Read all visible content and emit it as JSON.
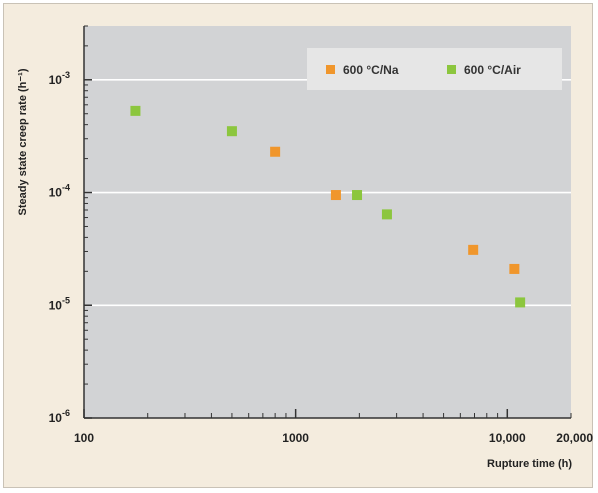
{
  "colors": {
    "frame_bg": "#f4ecde",
    "plot_bg": "#d2d3d5",
    "gridline": "#ffffff",
    "legend_bg": "#e6e6e6",
    "axis": "#333333"
  },
  "chart_data": {
    "type": "scatter",
    "title": "",
    "xlabel": "Rupture time (h)",
    "ylabel": "Steady state creep rate (h⁻¹)",
    "xscale": "log",
    "yscale": "log",
    "xlim": [
      100,
      20000
    ],
    "ylim": [
      1e-06,
      0.003
    ],
    "grid": "horizontal at decades",
    "legend_position": "top-right",
    "x_tick_labels": [
      {
        "value": 100,
        "label": "100"
      },
      {
        "value": 1000,
        "label": "1000"
      },
      {
        "value": 10000,
        "label": "10,000"
      },
      {
        "value": 20000,
        "label": "20,000"
      }
    ],
    "y_tick_labels": [
      {
        "value": 0.001,
        "base": "10",
        "exp": "-3"
      },
      {
        "value": 0.0001,
        "base": "10",
        "exp": "-4"
      },
      {
        "value": 1e-05,
        "base": "10",
        "exp": "-5"
      },
      {
        "value": 1e-06,
        "base": "10",
        "exp": "-6"
      }
    ],
    "series": [
      {
        "name": "600 °C/Na",
        "color": "#f0962c",
        "marker": "square",
        "points": [
          {
            "x": 800,
            "y": 0.00023
          },
          {
            "x": 1550,
            "y": 9.5e-05
          },
          {
            "x": 6900,
            "y": 3.1e-05
          },
          {
            "x": 10800,
            "y": 2.1e-05
          }
        ]
      },
      {
        "name": "600 °C/Air",
        "color": "#8cc63e",
        "marker": "square",
        "points": [
          {
            "x": 175,
            "y": 0.00053
          },
          {
            "x": 500,
            "y": 0.00035
          },
          {
            "x": 1950,
            "y": 9.5e-05
          },
          {
            "x": 2700,
            "y": 6.4e-05
          },
          {
            "x": 11500,
            "y": 1.06e-05
          }
        ]
      }
    ]
  }
}
